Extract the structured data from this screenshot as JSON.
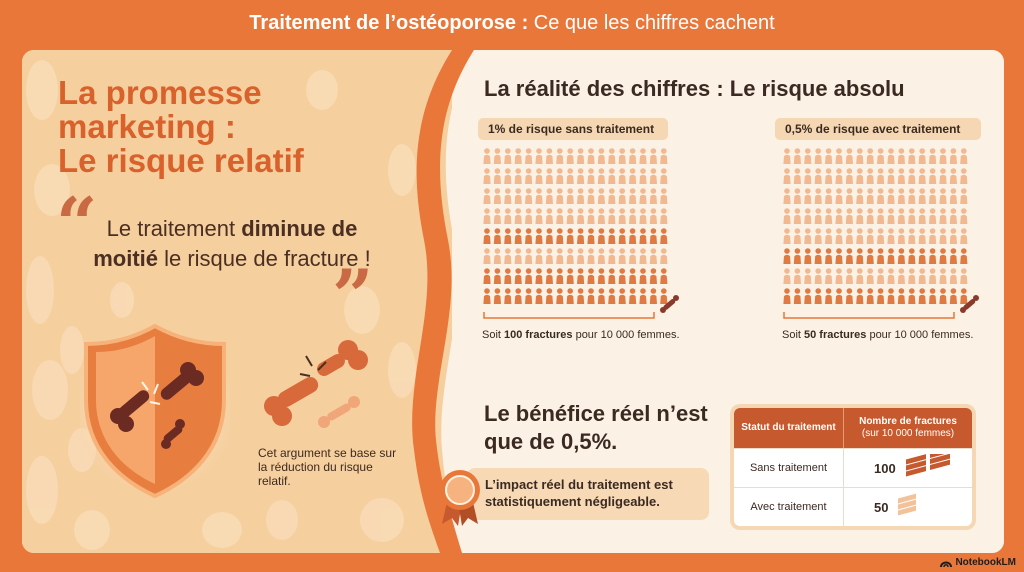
{
  "header": {
    "title_bold": "Traitement de l’ostéoporose :",
    "title_rest": " Ce que les chiffres cachent"
  },
  "left": {
    "title_lines": [
      "La promesse",
      "marketing :",
      "Le risque relatif"
    ],
    "quote_open": "“",
    "quote_close": "”",
    "quote_part1": "Le traitement ",
    "quote_part2": "diminue de moitié",
    "quote_part3": " le risque de fracture !",
    "argument": "Cet argument se base sur la réduction du risque relatif."
  },
  "right": {
    "title": "La réalité des chiffres : Le risque absolu",
    "without": {
      "pill": "1% de risque sans traitement",
      "caption_pre": "Soit ",
      "caption_bold": "100 fractures",
      "caption_post": " pour 10 000 femmes."
    },
    "with": {
      "pill": "0,5% de risque avec traitement",
      "caption_pre": "Soit ",
      "caption_bold": "50 fractures",
      "caption_post": " pour 10 000 femmes."
    },
    "benefit": "Le bénéfice réel n’est que de 0,5%.",
    "impact": "L’impact réel du traitement est statistiquement négligeable."
  },
  "table": {
    "header_col1": "Statut du traitement",
    "header_col2": "Nombre de fractures",
    "header_col2_sub": "(sur 10 000 femmes)",
    "rows": [
      {
        "status": "Sans traitement",
        "count": "100"
      },
      {
        "status": "Avec traitement",
        "count": "50"
      }
    ]
  },
  "footer": {
    "brand": "NotebookLM"
  },
  "colors": {
    "accent": "#e9773a",
    "dark_orange": "#c65a2e",
    "light_figure": "#f2b88f",
    "dark_figure": "#df7a43",
    "bone": "#8a3a2a"
  },
  "icons": [
    "shield-icon",
    "broken-bone-icon",
    "medal-icon",
    "book-stack-icon",
    "notebooklm-logo-icon"
  ]
}
